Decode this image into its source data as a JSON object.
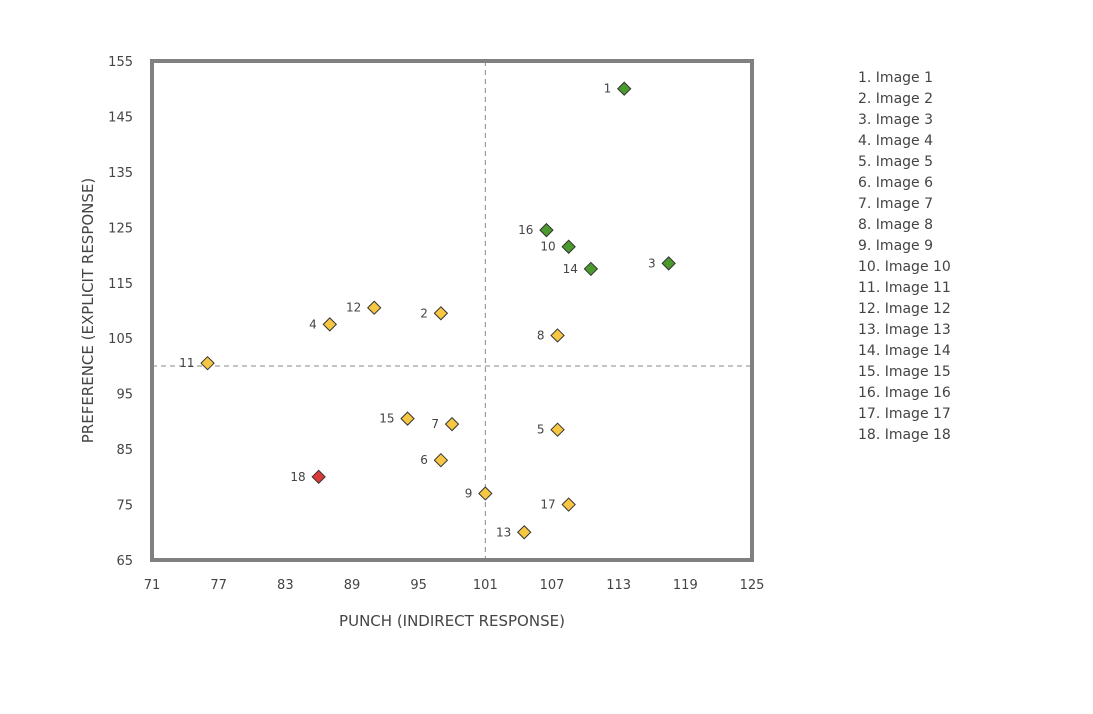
{
  "chart_data": {
    "type": "scatter",
    "title": "",
    "xlabel": "PUNCH (INDIRECT RESPONSE)",
    "ylabel": "PREFERENCE (EXPLICIT RESPONSE)",
    "xlim": [
      71,
      125
    ],
    "ylim": [
      65,
      155
    ],
    "xticks": [
      "71",
      "77",
      "83",
      "89",
      "95",
      "101",
      "107",
      "113",
      "119",
      "125"
    ],
    "yticks": [
      "65",
      "75",
      "85",
      "95",
      "105",
      "115",
      "125",
      "135",
      "145",
      "155"
    ],
    "quadrant_lines": {
      "x": 101,
      "y": 100
    },
    "legend_placement": "right",
    "colors": {
      "green": "#4a9a2e",
      "yellow": "#f7c643",
      "red": "#d93a36",
      "frame": "#808080",
      "text": "#444444"
    },
    "points": [
      {
        "label": "1",
        "x": 113.5,
        "y": 150.0,
        "color": "green",
        "side": "left"
      },
      {
        "label": "2",
        "x": 97.0,
        "y": 109.5,
        "color": "yellow",
        "side": "left"
      },
      {
        "label": "3",
        "x": 117.5,
        "y": 118.5,
        "color": "green",
        "side": "left"
      },
      {
        "label": "4",
        "x": 87.0,
        "y": 107.5,
        "color": "yellow",
        "side": "left"
      },
      {
        "label": "5",
        "x": 107.5,
        "y": 88.5,
        "color": "yellow",
        "side": "left"
      },
      {
        "label": "6",
        "x": 97.0,
        "y": 83.0,
        "color": "yellow",
        "side": "left"
      },
      {
        "label": "7",
        "x": 98.0,
        "y": 89.5,
        "color": "yellow",
        "side": "left"
      },
      {
        "label": "8",
        "x": 107.5,
        "y": 105.5,
        "color": "yellow",
        "side": "left"
      },
      {
        "label": "9",
        "x": 101.0,
        "y": 77.0,
        "color": "yellow",
        "side": "left"
      },
      {
        "label": "10",
        "x": 108.5,
        "y": 121.5,
        "color": "green",
        "side": "left"
      },
      {
        "label": "11",
        "x": 76.0,
        "y": 100.5,
        "color": "yellow",
        "side": "left"
      },
      {
        "label": "12",
        "x": 91.0,
        "y": 110.5,
        "color": "yellow",
        "side": "left"
      },
      {
        "label": "13",
        "x": 104.5,
        "y": 70.0,
        "color": "yellow",
        "side": "left"
      },
      {
        "label": "14",
        "x": 110.5,
        "y": 117.5,
        "color": "green",
        "side": "left"
      },
      {
        "label": "15",
        "x": 94.0,
        "y": 90.5,
        "color": "yellow",
        "side": "left"
      },
      {
        "label": "16",
        "x": 106.5,
        "y": 124.5,
        "color": "green",
        "side": "left"
      },
      {
        "label": "17",
        "x": 108.5,
        "y": 75.0,
        "color": "yellow",
        "side": "left"
      },
      {
        "label": "18",
        "x": 86.0,
        "y": 80.0,
        "color": "red",
        "side": "left"
      }
    ],
    "legend": [
      "1. Image 1",
      "2. Image 2",
      "3. Image 3",
      "4. Image 4",
      "5. Image 5",
      "6. Image 6",
      "7. Image 7",
      "8. Image 8",
      "9. Image 9",
      "10. Image 10",
      "11. Image 11",
      "12. Image 12",
      "13. Image 13",
      "14. Image 14",
      "15. Image 15",
      "16. Image 16",
      "17. Image 17",
      "18. Image 18"
    ]
  }
}
